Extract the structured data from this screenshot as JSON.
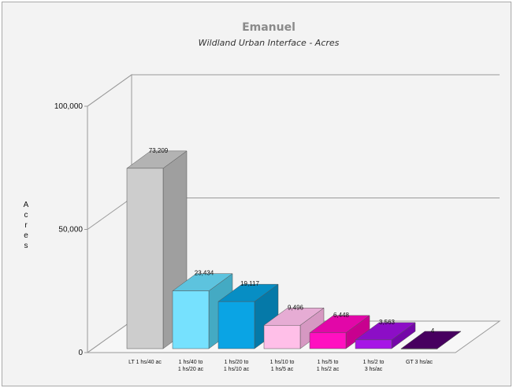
{
  "chart_data": {
    "type": "bar",
    "title": "Emanuel",
    "subtitle": "Wildland Urban Interface - Acres",
    "ylabel": "Acres",
    "xlabel": "",
    "ylim": [
      0,
      100000
    ],
    "yticks": [
      "0",
      "50,000",
      "100,000"
    ],
    "three_d": true,
    "grid": true,
    "categories": [
      [
        "LT 1 hs/40 ac"
      ],
      [
        "1 hs/40 to",
        "1 hs/20 ac"
      ],
      [
        "1 hs/20 to",
        "1 hs/10 ac"
      ],
      [
        "1 hs/10 to",
        "1 hs/5 ac"
      ],
      [
        "1 hs/5 to",
        "1 hs/2 ac"
      ],
      [
        "1 hs/2 to",
        "3 hs/ac"
      ],
      [
        "GT 3 hs/ac"
      ]
    ],
    "values": [
      73209,
      23434,
      19117,
      9496,
      6448,
      3563,
      4
    ],
    "data_labels": [
      "73,209",
      "23,434",
      "19,117",
      "9,496",
      "6,448",
      "3,563",
      "4"
    ],
    "colors": [
      {
        "front": "#cdcdcd",
        "side": "#9f9f9f",
        "top": "#b3b3b3"
      },
      {
        "front": "#76e1fe",
        "side": "#44aac3",
        "top": "#5dc3de"
      },
      {
        "front": "#0aa4e4",
        "side": "#0579a8",
        "top": "#078ec4"
      },
      {
        "front": "#ffbfe8",
        "side": "#d698c2",
        "top": "#e6acd4"
      },
      {
        "front": "#ff10c0",
        "side": "#c8008f",
        "top": "#e207a8"
      },
      {
        "front": "#a616e6",
        "side": "#7407a8",
        "top": "#8c0ec6"
      },
      {
        "front": "#520070",
        "side": "#3a0050",
        "top": "#47005f"
      }
    ]
  }
}
